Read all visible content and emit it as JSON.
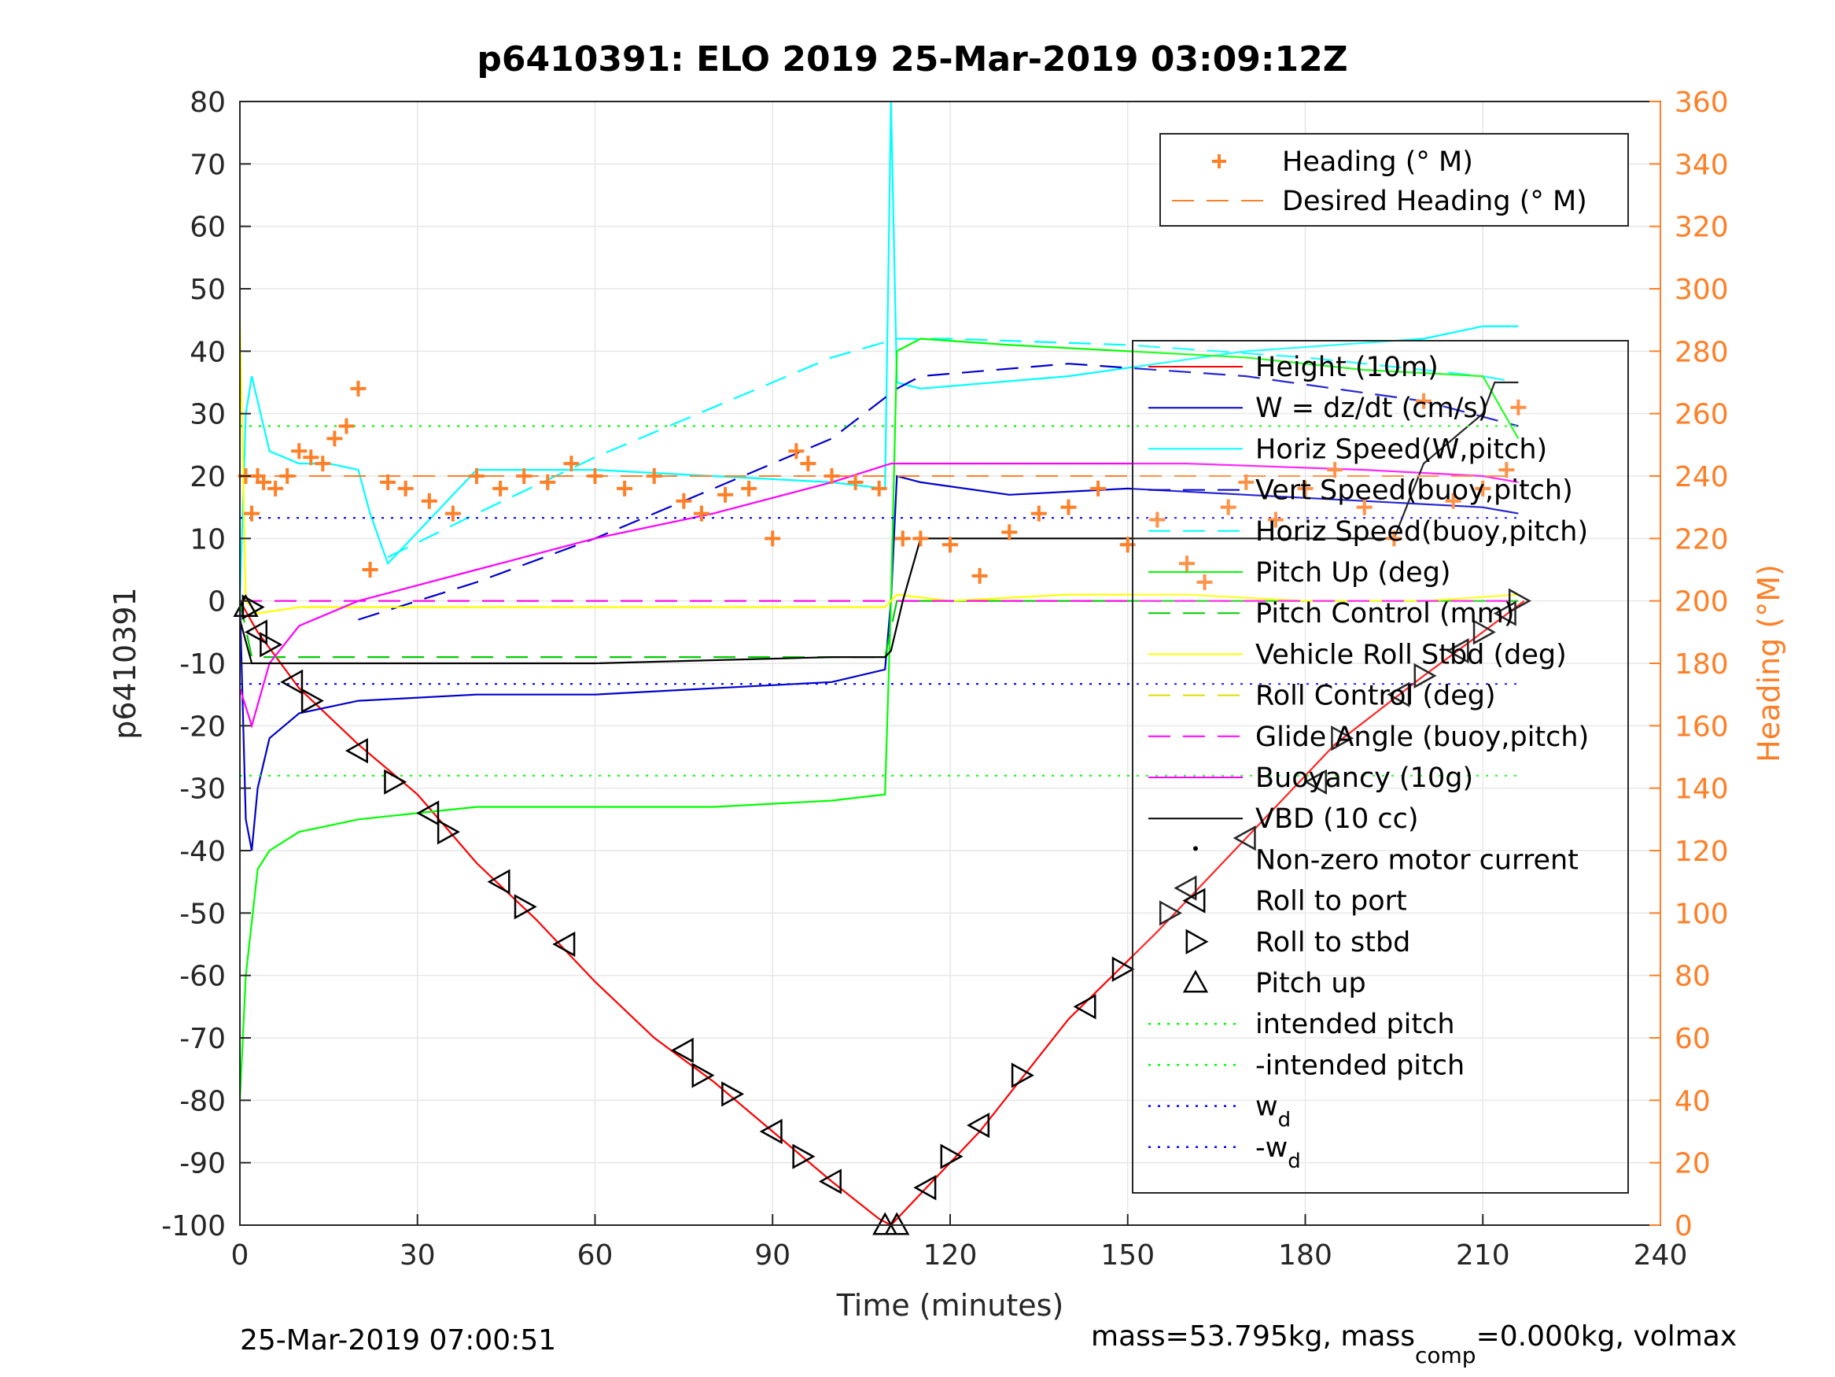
{
  "figure": {
    "title": "p6410391: ELO 2019 25-Mar-2019 03:09:12Z",
    "xlabel": "Time (minutes)",
    "ylabel_left": "p6410391",
    "ylabel_right": "Heading (°M)",
    "footer_left": "25-Mar-2019 07:00:51",
    "footer_right_a": "mass=53.795kg, mass",
    "footer_right_sub": "comp",
    "footer_right_b": "=0.000kg, volmax"
  },
  "colors": {
    "height": "#ff0000",
    "w": "#0000cc",
    "horiz_w": "#00ffff",
    "vert_buoy": "#0000cc",
    "horiz_buoy": "#00ffff",
    "pitch": "#00ff00",
    "pitch_control": "#00cc00",
    "roll": "#ffff00",
    "roll_control": "#dddd00",
    "glide": "#ff00ff",
    "buoyancy": "#ff00ff",
    "vbd": "#000000",
    "heading": "#ff7f27",
    "intended": "#00ff00",
    "wd": "#0000ff"
  },
  "legend_heading": [
    {
      "label": "Heading (° M)",
      "style": "plus",
      "color": "#ff7f27"
    },
    {
      "label": "Desired Heading (° M)",
      "style": "dash",
      "color": "#ff7f27"
    }
  ],
  "legend_main": [
    {
      "label": "Height (10m)",
      "style": "line",
      "color": "#ff0000"
    },
    {
      "label": "W = dz/dt (cm/s)",
      "style": "line",
      "color": "#0000cc"
    },
    {
      "label": "Horiz Speed(W,pitch)",
      "style": "line",
      "color": "#00ffff"
    },
    {
      "label": "Vert Speed(buoy,pitch)",
      "style": "dash",
      "color": "#0000cc"
    },
    {
      "label": "Horiz Speed(buoy,pitch)",
      "style": "dash",
      "color": "#00ffff"
    },
    {
      "label": "Pitch Up (deg)",
      "style": "line",
      "color": "#00ff00"
    },
    {
      "label": "Pitch Control (mm)",
      "style": "dash",
      "color": "#00cc00"
    },
    {
      "label": "Vehicle Roll Stbd (deg)",
      "style": "line",
      "color": "#ffff00"
    },
    {
      "label": "Roll Control (deg)",
      "style": "dash",
      "color": "#dddd00"
    },
    {
      "label": "Glide Angle (buoy,pitch)",
      "style": "dash",
      "color": "#ff00ff"
    },
    {
      "label": "Buoyancy (10g)",
      "style": "line",
      "color": "#ff00ff"
    },
    {
      "label": "VBD (10 cc)",
      "style": "line",
      "color": "#000000"
    },
    {
      "label": "Non-zero motor current",
      "style": "dot",
      "color": "#000000"
    },
    {
      "label": "Roll to port",
      "style": "tri-left",
      "color": "#000000"
    },
    {
      "label": "Roll to stbd",
      "style": "tri-right",
      "color": "#000000"
    },
    {
      "label": "Pitch up",
      "style": "tri-up",
      "color": "#000000"
    },
    {
      "label": "intended pitch",
      "style": "dot-line",
      "color": "#00ff00"
    },
    {
      "label": "-intended pitch",
      "style": "dot-line",
      "color": "#00ff00"
    },
    {
      "label": "w",
      "sub": "d",
      "style": "dot-line",
      "color": "#0000ff"
    },
    {
      "label": "-w",
      "sub": "d",
      "style": "dot-line",
      "color": "#0000ff"
    }
  ],
  "chart_data": {
    "type": "line",
    "title": "p6410391: ELO 2019 25-Mar-2019 03:09:12Z",
    "xlabel": "Time (minutes)",
    "ylabel": "p6410391",
    "y2label": "Heading (°M)",
    "xlim": [
      0,
      240
    ],
    "ylim": [
      -100,
      80
    ],
    "y2lim": [
      0,
      360
    ],
    "xticks": [
      0,
      30,
      60,
      90,
      120,
      150,
      180,
      210,
      240
    ],
    "yticks": [
      -100,
      -90,
      -80,
      -70,
      -60,
      -50,
      -40,
      -30,
      -20,
      -10,
      0,
      10,
      20,
      30,
      40,
      50,
      60,
      70,
      80
    ],
    "y2ticks": [
      0,
      20,
      40,
      60,
      80,
      100,
      120,
      140,
      160,
      180,
      200,
      220,
      240,
      260,
      280,
      300,
      320,
      340,
      360
    ],
    "grid": true,
    "legend_placement": [
      "top-right (heading axis)",
      "right (main)"
    ],
    "series": [
      {
        "name": "Height (10m)",
        "x": [
          0,
          3,
          10,
          20,
          30,
          40,
          50,
          60,
          70,
          80,
          90,
          100,
          108,
          110,
          115,
          125,
          140,
          155,
          170,
          185,
          200,
          210,
          217
        ],
        "y": [
          0,
          -5,
          -14,
          -23,
          -31,
          -42,
          -51,
          -61,
          -70,
          -77,
          -85,
          -93,
          -99,
          -100,
          -95,
          -85,
          -67,
          -53,
          -38,
          -23,
          -12,
          -5,
          0
        ]
      },
      {
        "name": "W = dz/dt (cm/s)",
        "x": [
          0,
          1,
          2,
          3,
          5,
          10,
          20,
          40,
          60,
          80,
          100,
          109,
          110,
          111,
          115,
          130,
          150,
          170,
          190,
          210,
          216
        ],
        "y": [
          0,
          -35,
          -40,
          -30,
          -22,
          -18,
          -16,
          -15,
          -15,
          -14,
          -13,
          -11,
          0,
          20,
          19,
          17,
          18,
          17,
          16,
          15,
          14
        ]
      },
      {
        "name": "Horiz Speed(W,pitch)",
        "x": [
          0,
          1,
          2,
          5,
          10,
          15,
          20,
          22,
          25,
          40,
          60,
          80,
          100,
          109,
          110,
          111,
          115,
          140,
          170,
          200,
          210,
          216
        ],
        "y": [
          0,
          30,
          36,
          24,
          22,
          22,
          21,
          14,
          6,
          21,
          21,
          20,
          19,
          18,
          80,
          35,
          34,
          36,
          40,
          42,
          44,
          44
        ]
      },
      {
        "name": "Vert Speed(buoy,pitch)",
        "x": [
          20,
          40,
          60,
          80,
          100,
          111,
          115,
          140,
          170,
          200,
          216
        ],
        "y": [
          -3,
          3,
          10,
          18,
          26,
          34,
          36,
          38,
          36,
          32,
          28
        ]
      },
      {
        "name": "Horiz Speed(buoy,pitch)",
        "x": [
          25,
          40,
          60,
          80,
          100,
          111,
          120,
          150,
          180,
          210,
          216
        ],
        "y": [
          7,
          14,
          23,
          31,
          39,
          42,
          42,
          41,
          39,
          36,
          35
        ]
      },
      {
        "name": "Pitch Up (deg)",
        "x": [
          0,
          1,
          3,
          5,
          10,
          15,
          20,
          30,
          40,
          60,
          80,
          100,
          109,
          110,
          111,
          115,
          130,
          150,
          170,
          190,
          210,
          216
        ],
        "y": [
          -80,
          -60,
          -43,
          -40,
          -37,
          -36,
          -35,
          -34,
          -33,
          -33,
          -33,
          -32,
          -31,
          0,
          40,
          42,
          41,
          40,
          39,
          37,
          36,
          26
        ]
      },
      {
        "name": "Pitch Control (mm)",
        "x": [
          0,
          2,
          20,
          60,
          109,
          111,
          150,
          216
        ],
        "y": [
          0,
          -9,
          -9,
          -9,
          -9,
          0,
          0,
          0
        ]
      },
      {
        "name": "Vehicle Roll Stbd (deg)",
        "x": [
          0,
          1,
          3,
          10,
          20,
          40,
          60,
          80,
          100,
          109,
          110,
          111,
          120,
          140,
          160,
          180,
          200,
          216
        ],
        "y": [
          45,
          0,
          -2,
          -1,
          -1,
          -1,
          -1,
          -1,
          -1,
          -1,
          0,
          1,
          0,
          1,
          1,
          0,
          0,
          1
        ]
      },
      {
        "name": "Roll Control (deg)",
        "x": [
          0,
          216
        ],
        "y": [
          0,
          0
        ]
      },
      {
        "name": "Glide Angle (buoy,pitch)",
        "x": [
          0,
          5,
          110,
          216
        ],
        "y": [
          0,
          0,
          0,
          0
        ]
      },
      {
        "name": "Buoyancy (10g)",
        "x": [
          0,
          2,
          5,
          10,
          20,
          40,
          60,
          80,
          100,
          110,
          130,
          160,
          190,
          210,
          216
        ],
        "y": [
          -14,
          -20,
          -10,
          -4,
          0,
          5,
          10,
          14,
          19,
          22,
          22,
          22,
          21,
          20,
          19
        ]
      },
      {
        "name": "VBD (10 cc)",
        "x": [
          0,
          2,
          3,
          20,
          60,
          100,
          109,
          110,
          112,
          115,
          150,
          180,
          195,
          200,
          210,
          212,
          216
        ],
        "y": [
          -3,
          -10,
          -10,
          -10,
          -10,
          -9,
          -9,
          -8,
          0,
          10,
          10,
          10,
          10,
          22,
          30,
          35,
          35
        ]
      },
      {
        "name": "intended pitch",
        "x": [
          0,
          216
        ],
        "y": [
          28,
          28
        ]
      },
      {
        "name": "-intended pitch",
        "x": [
          0,
          216
        ],
        "y": [
          -28,
          -28
        ]
      },
      {
        "name": "w_d",
        "x": [
          0,
          216
        ],
        "y": [
          13.3,
          13.3
        ]
      },
      {
        "name": "-w_d",
        "x": [
          0,
          216
        ],
        "y": [
          -13.3,
          -13.3
        ]
      }
    ],
    "heading": {
      "name": "Heading (° M)",
      "axis": "right",
      "x": [
        1,
        2,
        3,
        4,
        6,
        8,
        10,
        12,
        14,
        16,
        18,
        20,
        22,
        25,
        28,
        32,
        36,
        40,
        44,
        48,
        52,
        56,
        60,
        65,
        70,
        75,
        78,
        82,
        86,
        90,
        94,
        96,
        100,
        104,
        108,
        112,
        115,
        120,
        125,
        130,
        135,
        140,
        145,
        150,
        155,
        160,
        163,
        167,
        170,
        175,
        180,
        185,
        190,
        195,
        200,
        205,
        210,
        214,
        216
      ],
      "y": [
        240,
        228,
        240,
        238,
        236,
        240,
        248,
        246,
        244,
        252,
        256,
        268,
        210,
        238,
        236,
        232,
        228,
        240,
        236,
        240,
        238,
        244,
        240,
        236,
        240,
        232,
        228,
        234,
        236,
        220,
        248,
        244,
        240,
        238,
        236,
        220,
        220,
        218,
        208,
        222,
        228,
        230,
        236,
        218,
        226,
        212,
        206,
        230,
        238,
        226,
        236,
        242,
        230,
        220,
        264,
        232,
        236,
        242,
        262
      ]
    },
    "desired_heading": {
      "name": "Desired Heading (° M)",
      "axis": "right",
      "x": [
        0,
        216
      ],
      "y": [
        240,
        240
      ]
    },
    "markers": {
      "pitch_up": [
        [
          1,
          -1
        ],
        [
          109,
          -100
        ],
        [
          111,
          -100
        ]
      ],
      "roll_to_port": [
        [
          3,
          -5
        ],
        [
          9,
          -13
        ],
        [
          20,
          -24
        ],
        [
          32,
          -34
        ],
        [
          44,
          -45
        ],
        [
          55,
          -55
        ],
        [
          75,
          -72
        ],
        [
          90,
          -85
        ],
        [
          100,
          -93
        ],
        [
          116,
          -94
        ],
        [
          125,
          -84
        ],
        [
          143,
          -65
        ],
        [
          160,
          -46
        ],
        [
          170,
          -38
        ],
        [
          182,
          -29
        ],
        [
          196,
          -15
        ],
        [
          206,
          -8
        ],
        [
          214,
          -2
        ]
      ],
      "roll_to_stbd": [
        [
          2,
          -1
        ],
        [
          5,
          -7
        ],
        [
          12,
          -16
        ],
        [
          26,
          -29
        ],
        [
          35,
          -37
        ],
        [
          48,
          -49
        ],
        [
          78,
          -76
        ],
        [
          83,
          -79
        ],
        [
          95,
          -89
        ],
        [
          120,
          -89
        ],
        [
          132,
          -76
        ],
        [
          149,
          -59
        ],
        [
          157,
          -50
        ],
        [
          186,
          -22
        ],
        [
          200,
          -12
        ],
        [
          210,
          -5
        ],
        [
          216,
          0
        ]
      ]
    }
  }
}
